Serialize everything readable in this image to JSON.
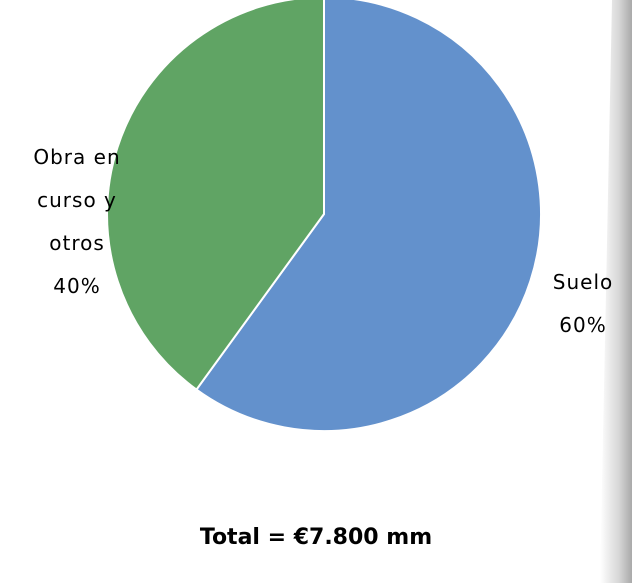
{
  "chart_data": {
    "type": "pie",
    "categories": [
      "Suelo",
      "Obra en curso y otros"
    ],
    "values": [
      60,
      40
    ],
    "value_labels": [
      "60%",
      "40%"
    ],
    "colors": [
      "#6391cc",
      "#60a464"
    ],
    "annotation": "Total = €7.800 mm"
  }
}
